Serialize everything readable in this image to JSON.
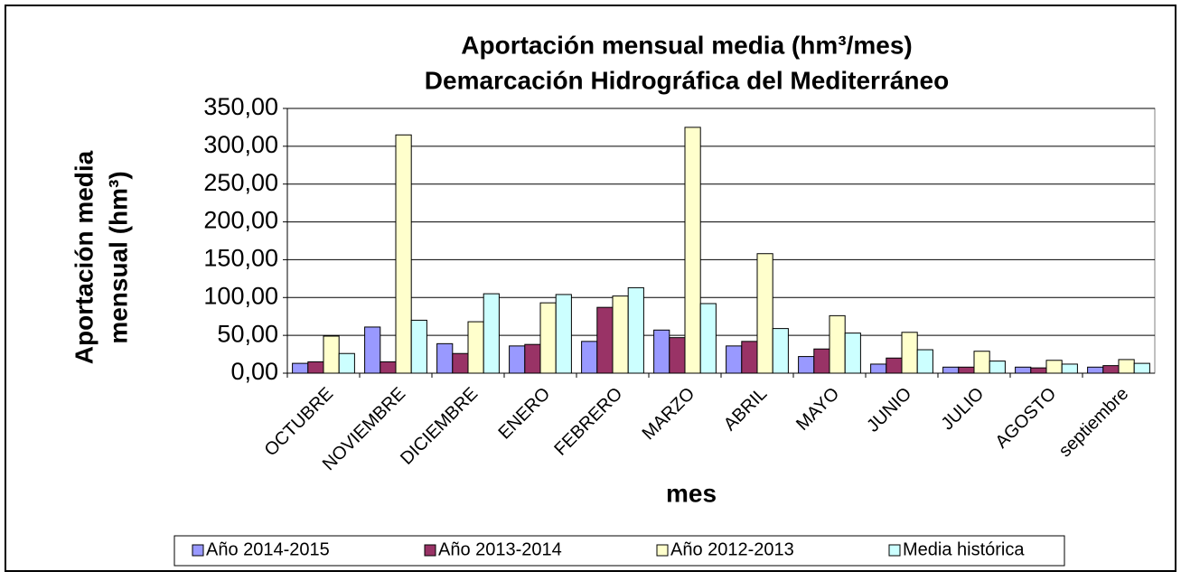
{
  "chart_data": {
    "type": "bar",
    "title": [
      "Aportación mensual media (hm³/mes)",
      "Demarcación Hidrográfica del Mediterráneo"
    ],
    "xlabel": "mes",
    "ylabel": [
      "Aportación media",
      "mensual (hm³)"
    ],
    "categories": [
      "OCTUBRE",
      "NOVIEMBRE",
      "DICIEMBRE",
      "ENERO",
      "FEBRERO",
      "MARZO",
      "ABRIL",
      "MAYO",
      "JUNIO",
      "JULIO",
      "AGOSTO",
      "septiembre"
    ],
    "series": [
      {
        "name": "Año 2014-2015",
        "color": "#9999ff",
        "values": [
          13,
          61,
          39,
          36,
          42,
          57,
          36,
          22,
          12,
          8,
          8,
          8
        ]
      },
      {
        "name": "Año 2013-2014",
        "color": "#993366",
        "values": [
          15,
          15,
          26,
          38,
          87,
          47,
          42,
          32,
          20,
          8,
          7,
          10
        ]
      },
      {
        "name": "Año 2012-2013",
        "color": "#ffffcc",
        "values": [
          49,
          315,
          68,
          93,
          102,
          325,
          158,
          76,
          54,
          29,
          17,
          18
        ]
      },
      {
        "name": "Media histórica",
        "color": "#ccffff",
        "values": [
          26,
          70,
          105,
          104,
          113,
          92,
          59,
          53,
          31,
          16,
          12,
          13
        ]
      }
    ],
    "ylim": [
      0,
      350
    ],
    "yticks": [
      {
        "value": 0,
        "label": "0,00"
      },
      {
        "value": 50,
        "label": "50,00"
      },
      {
        "value": 100,
        "label": "100,00"
      },
      {
        "value": 150,
        "label": "150,00"
      },
      {
        "value": 200,
        "label": "200,00"
      },
      {
        "value": 250,
        "label": "250,00"
      },
      {
        "value": 300,
        "label": "300,00"
      },
      {
        "value": 350,
        "label": "350,00"
      }
    ],
    "grid": true,
    "legend": "bottom"
  }
}
